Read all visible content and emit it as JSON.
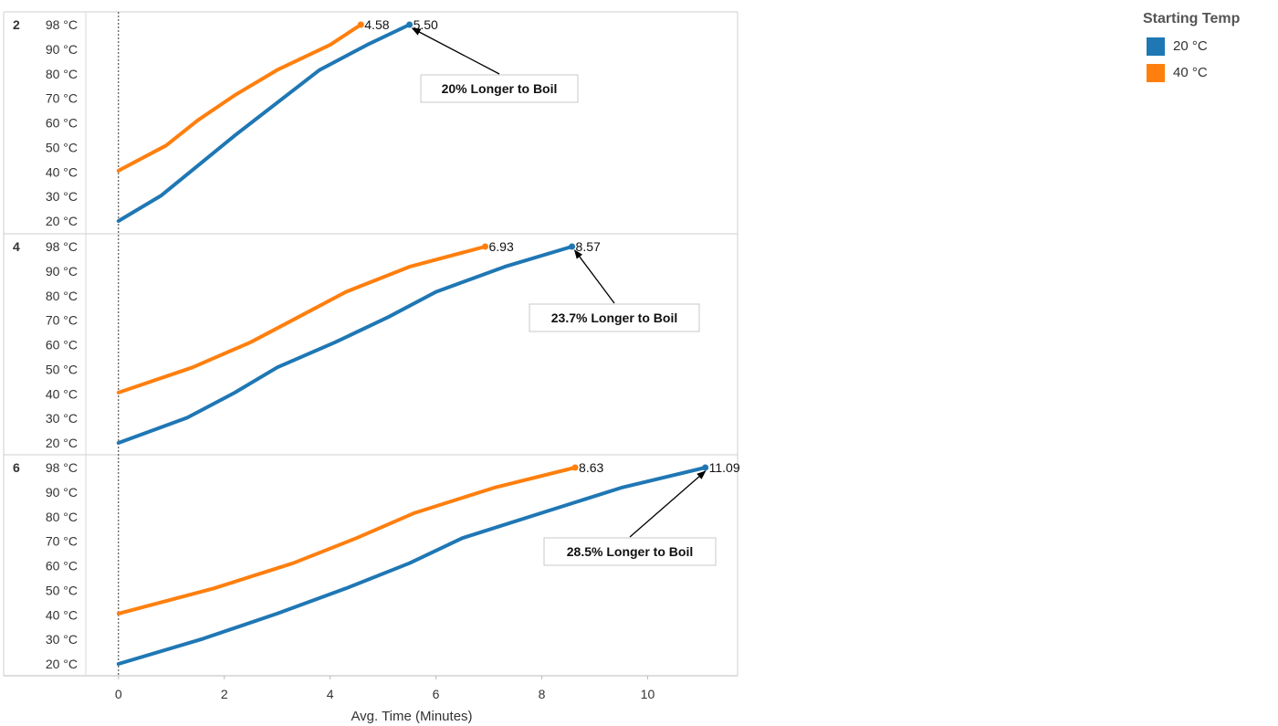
{
  "legend": {
    "title": "Starting Temp",
    "items": [
      {
        "label": "20 °C",
        "color": "#1f77b4"
      },
      {
        "label": "40 °C",
        "color": "#ff7f0e"
      }
    ]
  },
  "chart_data": {
    "type": "line",
    "title": "",
    "xlabel": "Avg. Time (Minutes)",
    "ylabel": "",
    "xlim": [
      -0.6,
      11.7
    ],
    "ylim": [
      20,
      98
    ],
    "x_ticks": [
      0,
      2,
      4,
      6,
      8,
      10
    ],
    "y_tick_labels": [
      "98 °C",
      "90 °C",
      "80 °C",
      "70 °C",
      "60 °C",
      "50 °C",
      "40 °C",
      "30 °C",
      "20 °C"
    ],
    "y_tick_values": [
      98,
      90,
      80,
      70,
      60,
      50,
      40,
      30,
      20
    ],
    "reference_line_x": 0,
    "panels": [
      {
        "row_label": "2",
        "series": [
          {
            "name": "20 °C",
            "color": "#1f77b4",
            "end_label": "5.50",
            "points": [
              [
                0,
                20
              ],
              [
                0.8,
                30
              ],
              [
                1.5,
                42
              ],
              [
                2.2,
                54
              ],
              [
                3.0,
                67
              ],
              [
                3.8,
                80
              ],
              [
                4.7,
                90
              ],
              [
                5.5,
                98
              ]
            ]
          },
          {
            "name": "40 °C",
            "color": "#ff7f0e",
            "end_label": "4.58",
            "points": [
              [
                0,
                40
              ],
              [
                0.9,
                50
              ],
              [
                1.5,
                60
              ],
              [
                2.2,
                70
              ],
              [
                3.0,
                80
              ],
              [
                4.0,
                90
              ],
              [
                4.58,
                98
              ]
            ]
          }
        ],
        "annotation": {
          "text": "20% Longer to Boil",
          "anchor": [
            5.5,
            98
          ]
        }
      },
      {
        "row_label": "4",
        "series": [
          {
            "name": "20 °C",
            "color": "#1f77b4",
            "end_label": "8.57",
            "points": [
              [
                0,
                20
              ],
              [
                1.3,
                30
              ],
              [
                2.2,
                40
              ],
              [
                3.0,
                50
              ],
              [
                4.1,
                60
              ],
              [
                5.1,
                70
              ],
              [
                6.0,
                80
              ],
              [
                7.3,
                90
              ],
              [
                8.57,
                98
              ]
            ]
          },
          {
            "name": "40 °C",
            "color": "#ff7f0e",
            "end_label": "6.93",
            "points": [
              [
                0,
                40
              ],
              [
                1.4,
                50
              ],
              [
                2.5,
                60
              ],
              [
                3.4,
                70
              ],
              [
                4.3,
                80
              ],
              [
                5.5,
                90
              ],
              [
                6.93,
                98
              ]
            ]
          }
        ],
        "annotation": {
          "text": "23.7% Longer to Boil",
          "anchor": [
            8.57,
            98
          ]
        }
      },
      {
        "row_label": "6",
        "series": [
          {
            "name": "20 °C",
            "color": "#1f77b4",
            "end_label": "11.09",
            "points": [
              [
                0,
                20
              ],
              [
                1.6,
                30
              ],
              [
                3.0,
                40
              ],
              [
                4.3,
                50
              ],
              [
                5.5,
                60
              ],
              [
                6.5,
                70
              ],
              [
                8.0,
                80
              ],
              [
                9.5,
                90
              ],
              [
                11.09,
                98
              ]
            ]
          },
          {
            "name": "40 °C",
            "color": "#ff7f0e",
            "end_label": "8.63",
            "points": [
              [
                0,
                40
              ],
              [
                1.8,
                50
              ],
              [
                3.3,
                60
              ],
              [
                4.5,
                70
              ],
              [
                5.6,
                80
              ],
              [
                7.1,
                90
              ],
              [
                8.63,
                98
              ]
            ]
          }
        ],
        "annotation": {
          "text": "28.5% Longer to Boil",
          "anchor": [
            11.09,
            98
          ]
        }
      }
    ]
  }
}
